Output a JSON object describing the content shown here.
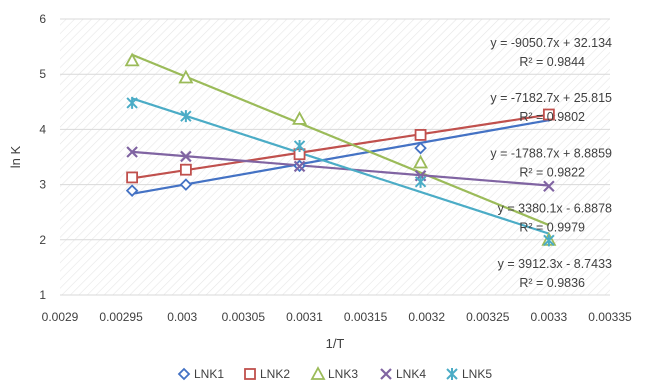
{
  "chart_data": {
    "type": "scatter",
    "xlabel": "1/T",
    "ylabel": "ln K",
    "xlim": [
      0.0029,
      0.00335
    ],
    "ylim": [
      1,
      6
    ],
    "x_ticks": [
      "0.0029",
      "0.00295",
      "0.003",
      "0.00305",
      "0.0031",
      "0.00315",
      "0.0032",
      "0.00325",
      "0.0033",
      "0.00335"
    ],
    "y_ticks": [
      "1",
      "2",
      "3",
      "4",
      "5",
      "6"
    ],
    "grid": "horizontal",
    "legend_position": "bottom",
    "trendlines": true,
    "series": [
      {
        "name": "LNK1",
        "marker": "diamond",
        "color": "#4472C4",
        "x": [
          0.002959,
          0.003003,
          0.003096,
          0.003195,
          0.0033
        ],
        "y": [
          2.89,
          3.0,
          3.34,
          3.66,
          4.25
        ],
        "fit": {
          "slope": 3912.3,
          "intercept": -8.7433
        },
        "equation": "y = 3912.3x - 8.7433",
        "r2": "R² = 0.9836"
      },
      {
        "name": "LNK2",
        "marker": "square",
        "color": "#C0504D",
        "x": [
          0.002959,
          0.003003,
          0.003096,
          0.003195,
          0.0033
        ],
        "y": [
          3.13,
          3.27,
          3.55,
          3.9,
          4.27
        ],
        "fit": {
          "slope": 3380.1,
          "intercept": -6.8878
        },
        "equation": "y = 3380.1x - 6.8878",
        "r2": "R² = 0.9979"
      },
      {
        "name": "LNK3",
        "marker": "triangle",
        "color": "#9BBB59",
        "x": [
          0.002959,
          0.003003,
          0.003096,
          0.003195,
          0.0033
        ],
        "y": [
          5.25,
          4.94,
          4.19,
          3.4,
          2.0
        ],
        "fit": {
          "slope": -9050.7,
          "intercept": 32.134
        },
        "equation": "y = -9050.7x + 32.134",
        "r2": "R² = 0.9844"
      },
      {
        "name": "LNK4",
        "marker": "x",
        "color": "#8064A2",
        "x": [
          0.002959,
          0.003003,
          0.003096,
          0.003195,
          0.0033
        ],
        "y": [
          3.59,
          3.51,
          3.33,
          3.16,
          2.97
        ],
        "fit": {
          "slope": -1788.7,
          "intercept": 8.8859
        },
        "equation": "y = -1788.7x + 8.8859",
        "r2": "R² = 0.9822"
      },
      {
        "name": "LNK5",
        "marker": "asterisk",
        "color": "#4BACC6",
        "x": [
          0.002959,
          0.003003,
          0.003096,
          0.003195,
          0.0033
        ],
        "y": [
          4.48,
          4.24,
          3.7,
          3.05,
          1.99
        ],
        "fit": {
          "slope": -7182.7,
          "intercept": 25.815
        },
        "equation": "y = -7182.7x + 25.815",
        "r2": "R² = 0.9802"
      }
    ],
    "annotation_order": [
      2,
      4,
      3,
      1,
      0
    ]
  }
}
